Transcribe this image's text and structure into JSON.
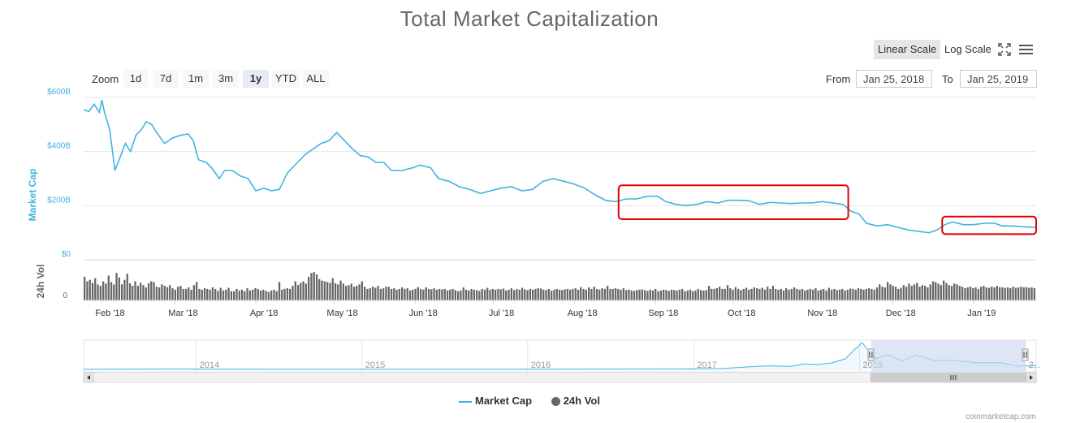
{
  "title": "Total Market Capitalization",
  "scale": {
    "linear_label": "Linear Scale",
    "log_label": "Log Scale",
    "active": "linear"
  },
  "zoom": {
    "label": "Zoom",
    "buttons": [
      "1d",
      "7d",
      "1m",
      "3m",
      "1y",
      "YTD",
      "ALL"
    ],
    "active": "1y"
  },
  "range": {
    "from_label": "From",
    "from_value": "Jan 25, 2018",
    "to_label": "To",
    "to_value": "Jan 25, 2019"
  },
  "colors": {
    "line": "#3fb4e0",
    "volume": "#666666",
    "highlight": "#e00000",
    "nav_selection": "#cdd8f0"
  },
  "icons": {
    "fullscreen": "fullscreen-icon",
    "menu": "hamburger-menu-icon"
  },
  "chart_data": {
    "type": "line",
    "title": "Total Market Capitalization",
    "ylabel": "Market Cap",
    "ylabel2": "24h Vol",
    "ylim": [
      0,
      600
    ],
    "y_unit": "B USD",
    "yticks": [
      {
        "value": 0,
        "label": "$0"
      },
      {
        "value": 200,
        "label": "$200B"
      },
      {
        "value": 400,
        "label": "$400B"
      },
      {
        "value": 600,
        "label": "$600B"
      }
    ],
    "vol_tick_label": "0",
    "xlim": [
      "2018-01-25",
      "2019-01-25"
    ],
    "xticks": [
      {
        "date": "2018-02-01",
        "label": "Feb '18"
      },
      {
        "date": "2018-03-01",
        "label": "Mar '18"
      },
      {
        "date": "2018-04-01",
        "label": "Apr '18"
      },
      {
        "date": "2018-05-01",
        "label": "May '18"
      },
      {
        "date": "2018-06-01",
        "label": "Jun '18"
      },
      {
        "date": "2018-07-01",
        "label": "Jul '18"
      },
      {
        "date": "2018-08-01",
        "label": "Aug '18"
      },
      {
        "date": "2018-09-01",
        "label": "Sep '18"
      },
      {
        "date": "2018-10-01",
        "label": "Oct '18"
      },
      {
        "date": "2018-11-01",
        "label": "Nov '18"
      },
      {
        "date": "2018-12-01",
        "label": "Dec '18"
      },
      {
        "date": "2019-01-01",
        "label": "Jan '19"
      }
    ],
    "series": [
      {
        "name": "Market Cap",
        "points": [
          [
            "2018-01-25",
            555
          ],
          [
            "2018-01-27",
            548
          ],
          [
            "2018-01-29",
            575
          ],
          [
            "2018-01-31",
            545
          ],
          [
            "2018-02-01",
            590
          ],
          [
            "2018-02-02",
            545
          ],
          [
            "2018-02-04",
            480
          ],
          [
            "2018-02-06",
            330
          ],
          [
            "2018-02-08",
            380
          ],
          [
            "2018-02-10",
            430
          ],
          [
            "2018-02-12",
            400
          ],
          [
            "2018-02-14",
            460
          ],
          [
            "2018-02-16",
            480
          ],
          [
            "2018-02-18",
            510
          ],
          [
            "2018-02-20",
            500
          ],
          [
            "2018-02-22",
            470
          ],
          [
            "2018-02-25",
            430
          ],
          [
            "2018-02-28",
            450
          ],
          [
            "2018-03-03",
            460
          ],
          [
            "2018-03-06",
            465
          ],
          [
            "2018-03-08",
            440
          ],
          [
            "2018-03-10",
            370
          ],
          [
            "2018-03-13",
            360
          ],
          [
            "2018-03-15",
            340
          ],
          [
            "2018-03-18",
            300
          ],
          [
            "2018-03-20",
            330
          ],
          [
            "2018-03-23",
            330
          ],
          [
            "2018-03-26",
            310
          ],
          [
            "2018-03-29",
            300
          ],
          [
            "2018-04-01",
            255
          ],
          [
            "2018-04-04",
            265
          ],
          [
            "2018-04-07",
            255
          ],
          [
            "2018-04-10",
            260
          ],
          [
            "2018-04-13",
            320
          ],
          [
            "2018-04-17",
            360
          ],
          [
            "2018-04-20",
            390
          ],
          [
            "2018-04-23",
            410
          ],
          [
            "2018-04-26",
            430
          ],
          [
            "2018-04-29",
            440
          ],
          [
            "2018-05-02",
            470
          ],
          [
            "2018-05-05",
            440
          ],
          [
            "2018-05-08",
            410
          ],
          [
            "2018-05-11",
            385
          ],
          [
            "2018-05-14",
            380
          ],
          [
            "2018-05-17",
            360
          ],
          [
            "2018-05-20",
            360
          ],
          [
            "2018-05-23",
            330
          ],
          [
            "2018-05-27",
            330
          ],
          [
            "2018-05-31",
            340
          ],
          [
            "2018-06-03",
            350
          ],
          [
            "2018-06-07",
            340
          ],
          [
            "2018-06-10",
            300
          ],
          [
            "2018-06-14",
            290
          ],
          [
            "2018-06-18",
            270
          ],
          [
            "2018-06-22",
            260
          ],
          [
            "2018-06-26",
            245
          ],
          [
            "2018-06-30",
            255
          ],
          [
            "2018-07-04",
            265
          ],
          [
            "2018-07-08",
            270
          ],
          [
            "2018-07-12",
            255
          ],
          [
            "2018-07-16",
            260
          ],
          [
            "2018-07-20",
            290
          ],
          [
            "2018-07-24",
            300
          ],
          [
            "2018-07-28",
            290
          ],
          [
            "2018-08-01",
            280
          ],
          [
            "2018-08-05",
            265
          ],
          [
            "2018-08-09",
            240
          ],
          [
            "2018-08-13",
            220
          ],
          [
            "2018-08-17",
            215
          ],
          [
            "2018-08-21",
            225
          ],
          [
            "2018-08-25",
            225
          ],
          [
            "2018-08-29",
            235
          ],
          [
            "2018-09-02",
            235
          ],
          [
            "2018-09-05",
            215
          ],
          [
            "2018-09-09",
            205
          ],
          [
            "2018-09-13",
            200
          ],
          [
            "2018-09-17",
            205
          ],
          [
            "2018-09-21",
            215
          ],
          [
            "2018-09-25",
            210
          ],
          [
            "2018-09-29",
            220
          ],
          [
            "2018-10-03",
            220
          ],
          [
            "2018-10-07",
            218
          ],
          [
            "2018-10-11",
            205
          ],
          [
            "2018-10-15",
            212
          ],
          [
            "2018-10-19",
            210
          ],
          [
            "2018-10-23",
            208
          ],
          [
            "2018-10-27",
            210
          ],
          [
            "2018-10-31",
            210
          ],
          [
            "2018-11-04",
            215
          ],
          [
            "2018-11-08",
            210
          ],
          [
            "2018-11-12",
            205
          ],
          [
            "2018-11-15",
            180
          ],
          [
            "2018-11-18",
            170
          ],
          [
            "2018-11-21",
            135
          ],
          [
            "2018-11-25",
            125
          ],
          [
            "2018-11-29",
            130
          ],
          [
            "2018-12-03",
            120
          ],
          [
            "2018-12-07",
            110
          ],
          [
            "2018-12-11",
            105
          ],
          [
            "2018-12-15",
            100
          ],
          [
            "2018-12-18",
            110
          ],
          [
            "2018-12-21",
            130
          ],
          [
            "2018-12-24",
            140
          ],
          [
            "2018-12-28",
            130
          ],
          [
            "2019-01-01",
            130
          ],
          [
            "2019-01-05",
            135
          ],
          [
            "2019-01-09",
            135
          ],
          [
            "2019-01-12",
            125
          ],
          [
            "2019-01-16",
            125
          ],
          [
            "2019-01-20",
            122
          ],
          [
            "2019-01-25",
            120
          ]
        ]
      },
      {
        "name": "24h Vol",
        "values_relative": [
          0.62,
          0.5,
          0.54,
          0.46,
          0.58,
          0.42,
          0.38,
          0.5,
          0.44,
          0.65,
          0.48,
          0.42,
          0.72,
          0.6,
          0.42,
          0.54,
          0.7,
          0.45,
          0.38,
          0.5,
          0.38,
          0.46,
          0.4,
          0.34,
          0.45,
          0.5,
          0.48,
          0.36,
          0.34,
          0.42,
          0.38,
          0.35,
          0.4,
          0.32,
          0.28,
          0.36,
          0.38,
          0.3,
          0.3,
          0.34,
          0.28,
          0.4,
          0.48,
          0.3,
          0.28,
          0.32,
          0.3,
          0.28,
          0.34,
          0.3,
          0.25,
          0.33,
          0.26,
          0.28,
          0.33,
          0.24,
          0.24,
          0.3,
          0.26,
          0.28,
          0.24,
          0.32,
          0.26,
          0.28,
          0.32,
          0.3,
          0.26,
          0.28,
          0.25,
          0.22,
          0.26,
          0.28,
          0.24,
          0.48,
          0.28,
          0.3,
          0.32,
          0.3,
          0.38,
          0.5,
          0.4,
          0.46,
          0.5,
          0.44,
          0.62,
          0.72,
          0.74,
          0.68,
          0.56,
          0.52,
          0.5,
          0.48,
          0.46,
          0.58,
          0.45,
          0.42,
          0.52,
          0.44,
          0.38,
          0.4,
          0.44,
          0.36,
          0.38,
          0.42,
          0.5,
          0.36,
          0.3,
          0.32,
          0.36,
          0.33,
          0.38,
          0.3,
          0.32,
          0.36,
          0.36,
          0.3,
          0.32,
          0.28,
          0.3,
          0.34,
          0.3,
          0.32,
          0.26,
          0.28,
          0.3,
          0.35,
          0.3,
          0.28,
          0.34,
          0.3,
          0.29,
          0.32,
          0.28,
          0.3,
          0.29,
          0.3,
          0.26,
          0.28,
          0.3,
          0.27,
          0.24,
          0.26,
          0.34,
          0.28,
          0.26,
          0.3,
          0.28,
          0.27,
          0.25,
          0.3,
          0.28,
          0.33,
          0.28,
          0.3,
          0.28,
          0.3,
          0.29,
          0.31,
          0.26,
          0.28,
          0.32,
          0.27,
          0.3,
          0.28,
          0.33,
          0.29,
          0.27,
          0.3,
          0.28,
          0.3,
          0.32,
          0.31,
          0.28,
          0.27,
          0.3,
          0.25,
          0.28,
          0.3,
          0.28,
          0.27,
          0.29,
          0.3,
          0.28,
          0.3,
          0.32,
          0.28,
          0.35,
          0.3,
          0.28,
          0.34,
          0.3,
          0.36,
          0.3,
          0.28,
          0.32,
          0.3,
          0.38,
          0.3,
          0.3,
          0.32,
          0.3,
          0.28,
          0.32,
          0.27,
          0.28,
          0.26,
          0.25,
          0.27,
          0.28,
          0.29,
          0.27,
          0.25,
          0.28,
          0.26,
          0.3,
          0.24,
          0.26,
          0.28,
          0.27,
          0.25,
          0.28,
          0.27,
          0.26,
          0.28,
          0.3,
          0.24,
          0.26,
          0.28,
          0.24,
          0.26,
          0.3,
          0.27,
          0.26,
          0.27,
          0.38,
          0.3,
          0.3,
          0.32,
          0.36,
          0.3,
          0.3,
          0.4,
          0.32,
          0.28,
          0.35,
          0.3,
          0.27,
          0.3,
          0.33,
          0.28,
          0.3,
          0.34,
          0.32,
          0.3,
          0.33,
          0.28,
          0.36,
          0.3,
          0.38,
          0.3,
          0.28,
          0.3,
          0.26,
          0.32,
          0.28,
          0.3,
          0.34,
          0.3,
          0.28,
          0.3,
          0.26,
          0.28,
          0.3,
          0.28,
          0.32,
          0.26,
          0.28,
          0.3,
          0.26,
          0.33,
          0.28,
          0.3,
          0.27,
          0.28,
          0.3,
          0.26,
          0.28,
          0.31,
          0.3,
          0.28,
          0.32,
          0.3,
          0.28,
          0.3,
          0.32,
          0.3,
          0.28,
          0.34,
          0.42,
          0.36,
          0.34,
          0.48,
          0.42,
          0.38,
          0.36,
          0.3,
          0.33,
          0.4,
          0.36,
          0.44,
          0.38,
          0.42,
          0.46,
          0.36,
          0.4,
          0.38,
          0.34,
          0.42,
          0.5,
          0.48,
          0.44,
          0.4,
          0.52,
          0.46,
          0.4,
          0.38,
          0.44,
          0.42,
          0.38,
          0.36,
          0.32,
          0.34,
          0.36,
          0.32,
          0.34,
          0.3,
          0.36,
          0.38,
          0.34,
          0.33,
          0.36,
          0.34,
          0.38,
          0.35,
          0.34,
          0.33,
          0.34,
          0.32,
          0.36,
          0.33,
          0.34,
          0.36,
          0.34,
          0.35,
          0.33,
          0.34,
          0.32
        ]
      }
    ],
    "annotations": [
      {
        "type": "rect",
        "x0": "2018-08-18",
        "x1": "2018-11-14",
        "y0": 150,
        "y1": 275
      },
      {
        "type": "rect",
        "x0": "2018-12-20",
        "x1": "2019-01-25",
        "y0": 95,
        "y1": 160
      }
    ],
    "navigator": {
      "xlim": [
        "2013-04-28",
        "2019-01-25"
      ],
      "ylim": [
        0,
        830
      ],
      "year_labels": [
        {
          "date": "2014-01-01",
          "label": "2014"
        },
        {
          "date": "2015-01-01",
          "label": "2015"
        },
        {
          "date": "2016-01-01",
          "label": "2016"
        },
        {
          "date": "2017-01-01",
          "label": "2017"
        },
        {
          "date": "2018-01-01",
          "label": "2018"
        },
        {
          "date": "2019-01-01",
          "label": "2..."
        }
      ],
      "points": [
        [
          "2013-04-28",
          1.5
        ],
        [
          "2013-12-01",
          14
        ],
        [
          "2014-01-01",
          10
        ],
        [
          "2014-06-01",
          8
        ],
        [
          "2015-01-01",
          5
        ],
        [
          "2015-06-01",
          5
        ],
        [
          "2016-01-01",
          7
        ],
        [
          "2016-06-01",
          12
        ],
        [
          "2017-01-01",
          18
        ],
        [
          "2017-03-01",
          25
        ],
        [
          "2017-05-15",
          90
        ],
        [
          "2017-06-15",
          110
        ],
        [
          "2017-08-01",
          90
        ],
        [
          "2017-09-01",
          170
        ],
        [
          "2017-10-01",
          150
        ],
        [
          "2017-11-01",
          200
        ],
        [
          "2017-12-01",
          330
        ],
        [
          "2017-12-20",
          600
        ],
        [
          "2018-01-07",
          830
        ],
        [
          "2018-01-15",
          680
        ],
        [
          "2018-01-25",
          550
        ],
        [
          "2018-02-06",
          330
        ],
        [
          "2018-03-05",
          460
        ],
        [
          "2018-04-05",
          260
        ],
        [
          "2018-05-05",
          450
        ],
        [
          "2018-06-15",
          280
        ],
        [
          "2018-08-01",
          280
        ],
        [
          "2018-09-15",
          210
        ],
        [
          "2018-11-10",
          210
        ],
        [
          "2018-12-15",
          105
        ],
        [
          "2019-01-25",
          120
        ]
      ],
      "selection": [
        "2018-01-25",
        "2019-01-25"
      ]
    }
  },
  "legend": [
    {
      "label": "Market Cap",
      "marker": "line"
    },
    {
      "label": "24h Vol",
      "marker": "dot"
    }
  ],
  "credit": "coinmarketcap.com"
}
